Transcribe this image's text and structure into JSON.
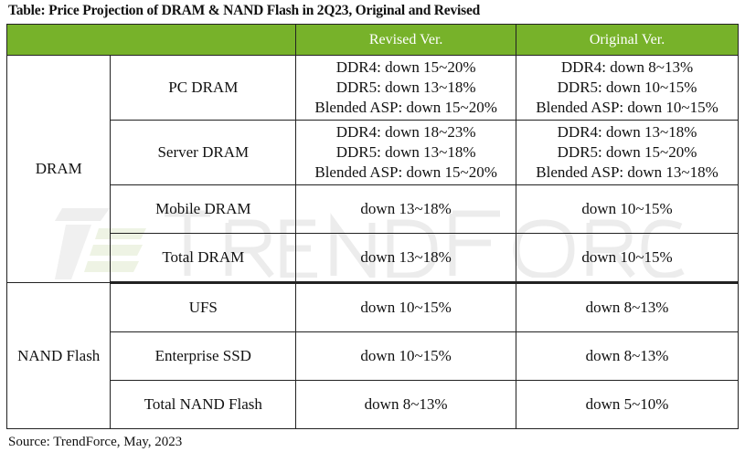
{
  "title": "Table: Price Projection of DRAM & NAND Flash in 2Q23, Original and Revised",
  "watermark": "TRENDFORCE",
  "header": {
    "blank": "",
    "revised": "Revised Ver.",
    "original": "Original Ver."
  },
  "header_color": "#77b22a",
  "groups": [
    {
      "name": "DRAM",
      "rows": [
        {
          "product": "PC DRAM",
          "revised": [
            "DDR4: down 15~20%",
            "DDR5: down 13~18%",
            "Blended ASP: down 15~20%"
          ],
          "original": [
            "DDR4: down 8~13%",
            "DDR5: down 10~15%",
            "Blended ASP: down 10~15%"
          ]
        },
        {
          "product": "Server DRAM",
          "revised": [
            "DDR4: down 18~23%",
            "DDR5: down 13~18%",
            "Blended ASP: down 15~20%"
          ],
          "original": [
            "DDR4: down 13~18%",
            "DDR5: down 15~20%",
            "Blended ASP: down 13~18%"
          ]
        },
        {
          "product": "Mobile DRAM",
          "revised": [
            "down 13~18%"
          ],
          "original": [
            "down 10~15%"
          ]
        },
        {
          "product": "Total DRAM",
          "revised": [
            "down 13~18%"
          ],
          "original": [
            "down 10~15%"
          ]
        }
      ]
    },
    {
      "name": "NAND Flash",
      "rows": [
        {
          "product": "UFS",
          "revised": [
            "down 10~15%"
          ],
          "original": [
            "down 8~13%"
          ]
        },
        {
          "product": "Enterprise SSD",
          "revised": [
            "down 10~15%"
          ],
          "original": [
            "down 8~13%"
          ]
        },
        {
          "product": "Total NAND Flash",
          "revised": [
            "down 8~13%"
          ],
          "original": [
            "down 5~10%"
          ]
        }
      ]
    }
  ],
  "source": "Source: TrendForce, May, 2023"
}
